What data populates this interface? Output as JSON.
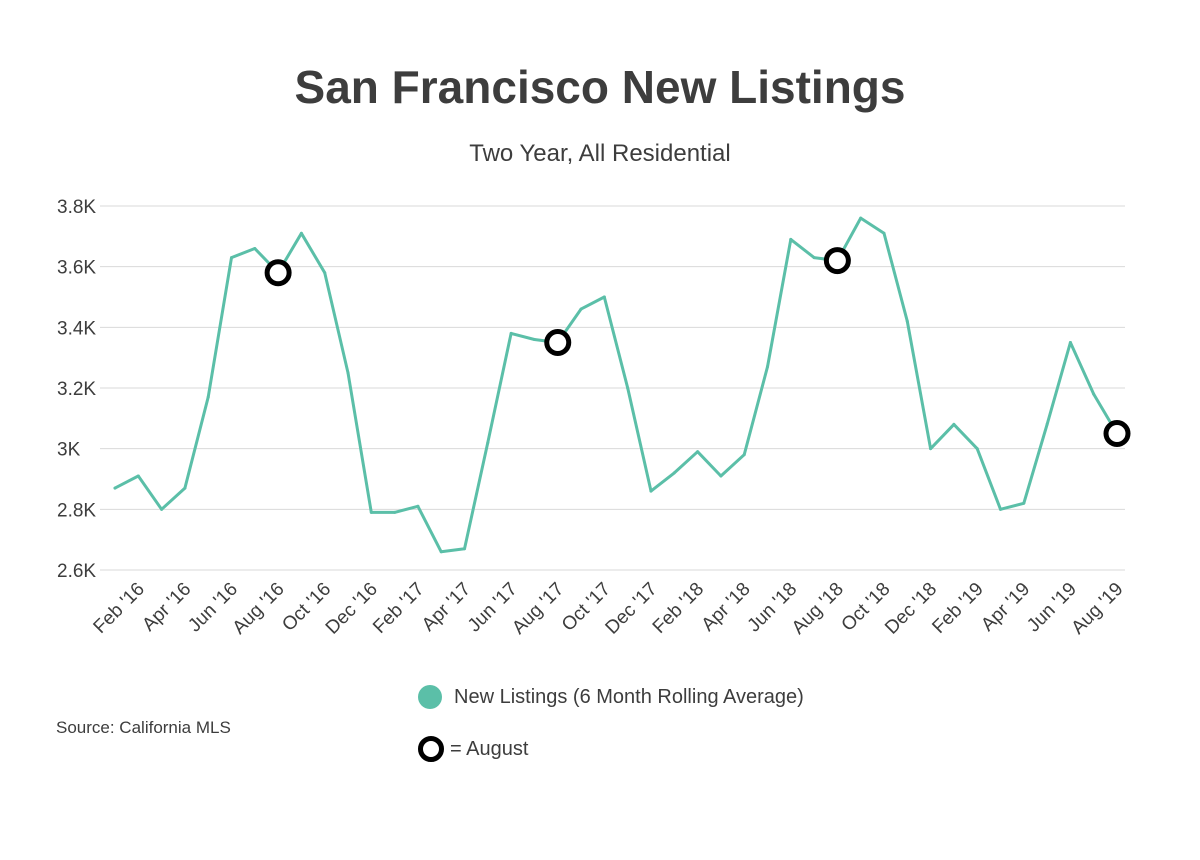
{
  "header": {
    "title": "San Francisco New Listings",
    "subtitle": "Two Year, All Residential"
  },
  "source": "Source:  California MLS",
  "legend": {
    "series_label": "New Listings (6 Month Rolling Average)",
    "marker_label": "= August"
  },
  "colors": {
    "line": "#5bbfa8",
    "marker": "#000000",
    "grid": "#d9d9d9",
    "text": "#3d3d3d"
  },
  "chart_data": {
    "type": "line",
    "title": "San Francisco New Listings",
    "subtitle": "Two Year, All Residential",
    "xlabel": "",
    "ylabel": "",
    "ylim": [
      2.6,
      3.8
    ],
    "y_unit": "K",
    "y_ticks": [
      {
        "value": 2.6,
        "label": "2.6K"
      },
      {
        "value": 2.8,
        "label": "2.8K"
      },
      {
        "value": 3.0,
        "label": "3K"
      },
      {
        "value": 3.2,
        "label": "3.2K"
      },
      {
        "value": 3.4,
        "label": "3.4K"
      },
      {
        "value": 3.6,
        "label": "3.6K"
      },
      {
        "value": 3.8,
        "label": "3.8K"
      }
    ],
    "grid": true,
    "legend_position": "bottom",
    "categories": [
      "Jan '16",
      "Feb '16",
      "Mar '16",
      "Apr '16",
      "May '16",
      "Jun '16",
      "Jul '16",
      "Aug '16",
      "Sep '16",
      "Oct '16",
      "Nov '16",
      "Dec '16",
      "Jan '17",
      "Feb '17",
      "Mar '17",
      "Apr '17",
      "May '17",
      "Jun '17",
      "Jul '17",
      "Aug '17",
      "Sep '17",
      "Oct '17",
      "Nov '17",
      "Dec '17",
      "Jan '18",
      "Feb '18",
      "Mar '18",
      "Apr '18",
      "May '18",
      "Jun '18",
      "Jul '18",
      "Aug '18",
      "Sep '18",
      "Oct '18",
      "Nov '18",
      "Dec '18",
      "Jan '19",
      "Feb '19",
      "Mar '19",
      "Apr '19",
      "May '19",
      "Jun '19",
      "Jul '19",
      "Aug '19"
    ],
    "tick_labels": [
      "Feb '16",
      "Apr '16",
      "Jun '16",
      "Aug '16",
      "Oct '16",
      "Dec '16",
      "Feb '17",
      "Apr '17",
      "Jun '17",
      "Aug '17",
      "Oct '17",
      "Dec '17",
      "Feb '18",
      "Apr '18",
      "Jun '18",
      "Aug '18",
      "Oct '18",
      "Dec '18",
      "Feb '19",
      "Apr '19",
      "Jun '19",
      "Aug '19"
    ],
    "series": [
      {
        "name": "New Listings (6 Month Rolling Average)",
        "values": [
          2.87,
          2.91,
          2.8,
          2.87,
          3.17,
          3.63,
          3.66,
          3.58,
          3.71,
          3.58,
          3.25,
          2.79,
          2.79,
          2.81,
          2.66,
          2.67,
          3.02,
          3.38,
          3.36,
          3.35,
          3.46,
          3.5,
          3.2,
          2.86,
          2.92,
          2.99,
          2.91,
          2.98,
          3.27,
          3.69,
          3.63,
          3.62,
          3.76,
          3.71,
          3.42,
          3.0,
          3.08,
          3.0,
          2.8,
          2.82,
          3.08,
          3.35,
          3.18,
          3.05
        ]
      }
    ],
    "highlight_label": "= August",
    "highlights": [
      "Aug '16",
      "Aug '17",
      "Aug '18",
      "Aug '19"
    ]
  }
}
